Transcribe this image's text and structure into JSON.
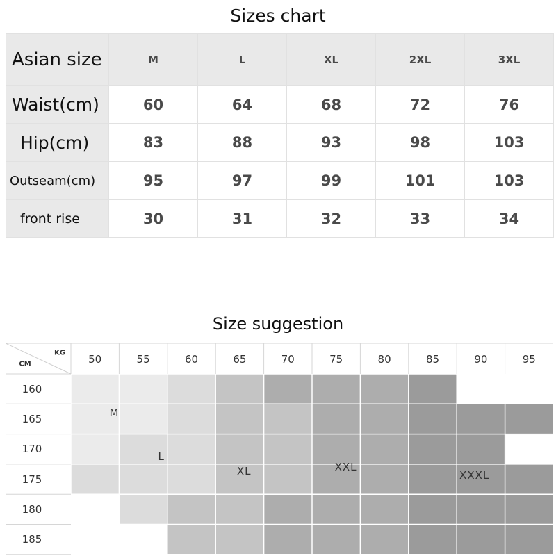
{
  "size_chart": {
    "title": "Sizes chart",
    "header_label": "Asian size",
    "sizes": [
      "M",
      "L",
      "XL",
      "2XL",
      "3XL"
    ],
    "rows": [
      {
        "label": "Waist(cm)",
        "values": [
          "60",
          "64",
          "68",
          "72",
          "76"
        ]
      },
      {
        "label": "Hip(cm)",
        "values": [
          "83",
          "88",
          "93",
          "98",
          "103"
        ]
      },
      {
        "label": "Outseam(cm)",
        "values": [
          "95",
          "97",
          "99",
          "101",
          "103"
        ]
      },
      {
        "label": "front rise",
        "values": [
          "30",
          "31",
          "32",
          "33",
          "34"
        ]
      }
    ]
  },
  "size_suggestion": {
    "title": "Size suggestion",
    "height_unit": "CM",
    "weight_unit": "KG",
    "weights": [
      "50",
      "55",
      "60",
      "65",
      "70",
      "75",
      "80",
      "85",
      "90",
      "95"
    ],
    "heights": [
      "160",
      "165",
      "170",
      "175",
      "180",
      "185"
    ],
    "size_grid": [
      [
        "M",
        "M",
        "L",
        "XL",
        "XXL",
        "XXL",
        "XXL",
        "XXXL",
        "",
        ""
      ],
      [
        "M",
        "M",
        "L",
        "XL",
        "XL",
        "XXL",
        "XXL",
        "XXXL",
        "XXXL",
        "XXXL"
      ],
      [
        "M",
        "L",
        "L",
        "XL",
        "XL",
        "XXL",
        "XXL",
        "XXXL",
        "XXXL",
        ""
      ],
      [
        "L",
        "L",
        "L",
        "XL",
        "XL",
        "XXL",
        "XXL",
        "XXXL",
        "XXXL",
        "XXXL"
      ],
      [
        "",
        "L",
        "XL",
        "XL",
        "XXL",
        "XXL",
        "XXL",
        "XXXL",
        "XXXL",
        "XXXL"
      ],
      [
        "",
        "",
        "XL",
        "XL",
        "XXL",
        "XXL",
        "XXL",
        "XXXL",
        "XXXL",
        "XXXL"
      ]
    ],
    "zone_labels": {
      "M": "M",
      "L": "L",
      "XL": "XL",
      "XXL": "XXL",
      "XXXL": "XXXL"
    },
    "zone_colors": {
      "M": "#ebebeb",
      "L": "#dcdcdc",
      "XL": "#c4c4c4",
      "XXL": "#adadad",
      "XXXL": "#9b9b9b"
    }
  }
}
